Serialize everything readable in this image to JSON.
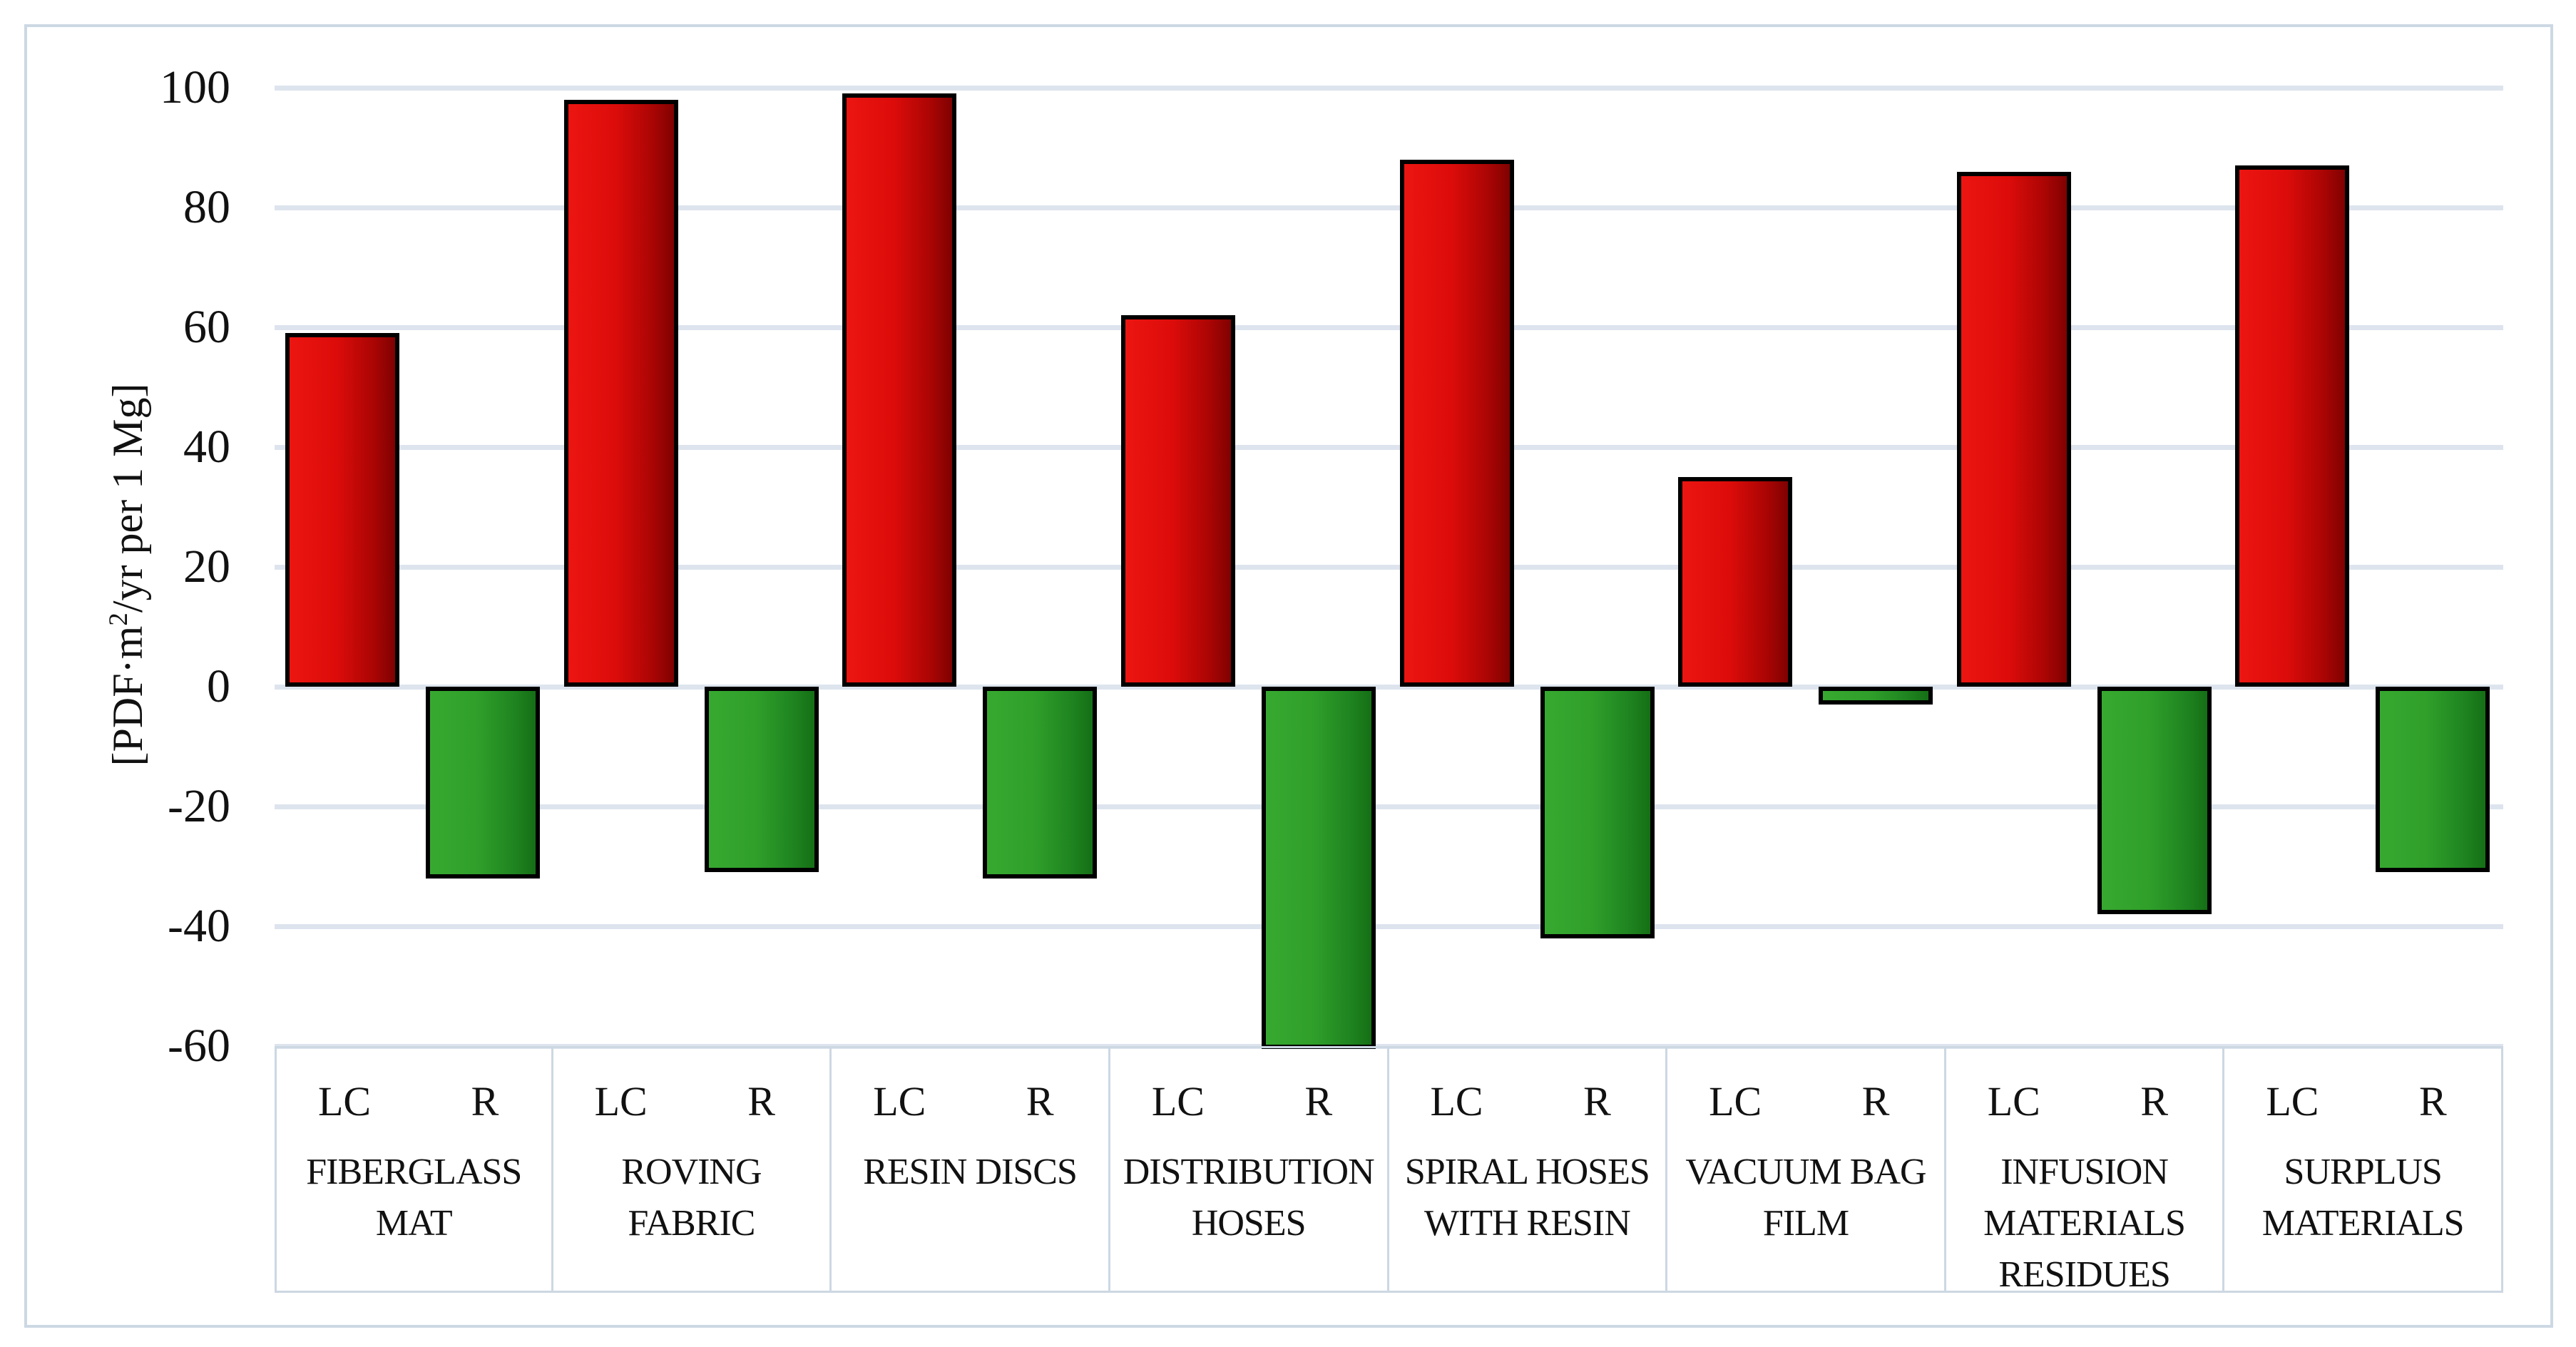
{
  "figure": {
    "kind": "column chart",
    "title": ""
  },
  "y_axis": {
    "title_full": "[PDF·m²/yr per 1 Mg]",
    "title_prefix": "[PDF·m",
    "title_sup": "2",
    "title_suffix": "/yr per 1 Mg]",
    "ticks": [
      100,
      80,
      60,
      40,
      20,
      0,
      -20,
      -40,
      -60
    ],
    "max": 100,
    "min": -60,
    "step": 20
  },
  "series_labels": {
    "lc": "LC",
    "r": "R"
  },
  "chart_data": {
    "type": "bar",
    "title": "",
    "xlabel": "",
    "ylabel": "[PDF·m²/yr per 1 Mg]",
    "ylim": [
      -60,
      100
    ],
    "grid": true,
    "legend_position": "none",
    "categories": [
      "FIBERGLASS MAT",
      "ROVING FABRIC",
      "RESIN DISCS",
      "DISTRIBUTION HOSES",
      "SPIRAL HOSES WITH RESIN",
      "VACUUM BAG FILM",
      "INFUSION MATERIALS RESIDUES",
      "SURPLUS MATERIALS"
    ],
    "category_lines": [
      [
        "FIBERGLASS",
        "MAT"
      ],
      [
        "ROVING",
        "FABRIC"
      ],
      [
        "RESIN DISCS"
      ],
      [
        "DISTRIBUTION",
        "HOSES"
      ],
      [
        "SPIRAL HOSES",
        "WITH RESIN"
      ],
      [
        "VACUUM BAG",
        "FILM"
      ],
      [
        "INFUSION",
        "MATERIALS",
        "RESIDUES"
      ],
      [
        "SURPLUS",
        "MATERIALS"
      ]
    ],
    "series": [
      {
        "name": "LC",
        "values": [
          59,
          98,
          99,
          62,
          88,
          35,
          86,
          87
        ]
      },
      {
        "name": "R",
        "values": [
          -32,
          -31,
          -32,
          -60.5,
          -42,
          -3,
          -38,
          -31
        ]
      }
    ]
  },
  "colors": {
    "text": "#111111",
    "figure_border": "#ccd8e3",
    "gridline": "#dde4ee",
    "cell_border": "#ccd8e3",
    "bar_border": "#000000",
    "lc_gradient": [
      "#ec1511",
      "#dc0c0a",
      "#a90504",
      "#7f0201"
    ],
    "r_gradient": [
      "#37a930",
      "#2f9f2a",
      "#1f8420",
      "#156f15"
    ],
    "gradient_stops_pct": [
      0,
      45,
      80,
      100
    ]
  }
}
